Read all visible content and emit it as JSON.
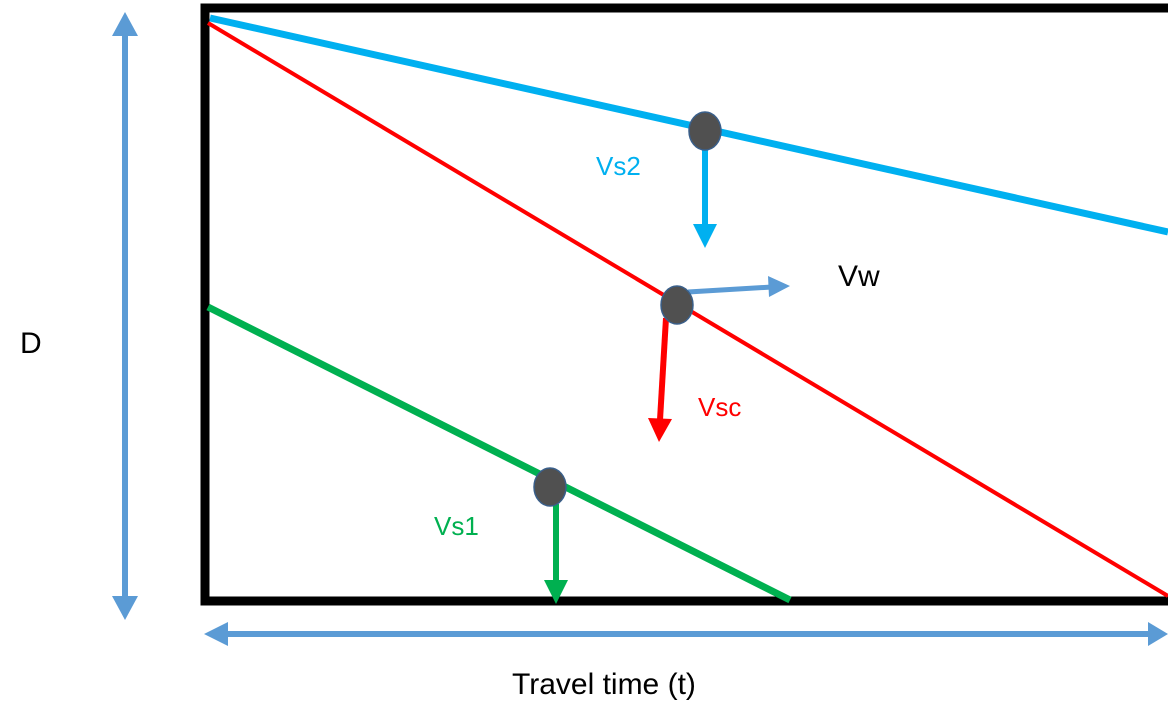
{
  "labels": {
    "depth": "D",
    "travel_time": "Travel time (t)",
    "vw": "Vw",
    "vs2": "Vs2",
    "vsc": "Vsc",
    "vs1": "Vs1"
  },
  "colors": {
    "frame": "#000000",
    "axis_arrows": "#5B9BD5",
    "vs2_line": "#00B0F0",
    "vsc_line": "#FF0000",
    "vs1_line": "#00B050",
    "particle": "#505050",
    "particle_edge": "#3A5F8A"
  }
}
